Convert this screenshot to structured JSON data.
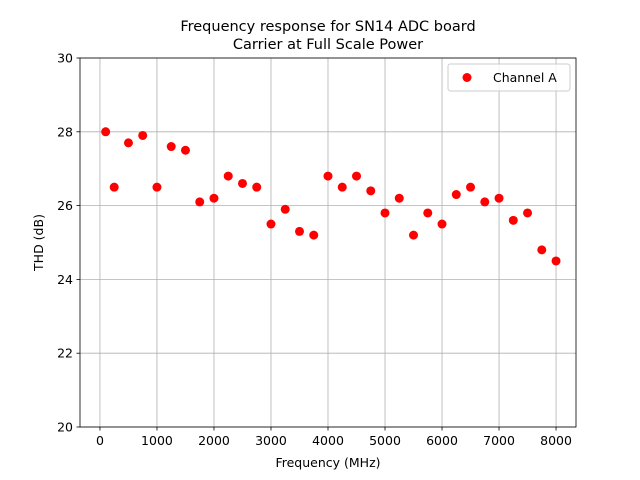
{
  "chart_data": {
    "type": "scatter",
    "title": "Frequency response for SN14 ADC board",
    "subtitle": "Carrier at Full Scale Power",
    "xlabel": "Frequency (MHz)",
    "ylabel": "THD (dB)",
    "xlim": [
      -350,
      8350
    ],
    "ylim": [
      20,
      30
    ],
    "xticks": [
      0,
      1000,
      2000,
      3000,
      4000,
      5000,
      6000,
      7000,
      8000
    ],
    "yticks": [
      20,
      22,
      24,
      26,
      28,
      30
    ],
    "grid": true,
    "legend_position": "top-right",
    "series": [
      {
        "name": "Channel A",
        "color": "#ff0000",
        "marker": "circle",
        "x": [
          100,
          250,
          500,
          750,
          1000,
          1250,
          1500,
          1750,
          2000,
          2250,
          2500,
          2750,
          3000,
          3250,
          3500,
          3750,
          4000,
          4250,
          4500,
          4750,
          5000,
          5250,
          5500,
          5750,
          6000,
          6250,
          6500,
          6750,
          7000,
          7250,
          7500,
          7750,
          8000
        ],
        "y": [
          28.0,
          26.5,
          27.7,
          27.9,
          26.5,
          27.6,
          27.5,
          26.1,
          26.2,
          26.8,
          26.6,
          26.5,
          25.5,
          25.9,
          25.3,
          25.2,
          26.8,
          26.5,
          26.8,
          26.4,
          25.8,
          26.2,
          25.2,
          25.8,
          25.5,
          26.3,
          26.5,
          26.1,
          26.2,
          25.6,
          25.8,
          24.8,
          24.5
        ]
      }
    ]
  }
}
